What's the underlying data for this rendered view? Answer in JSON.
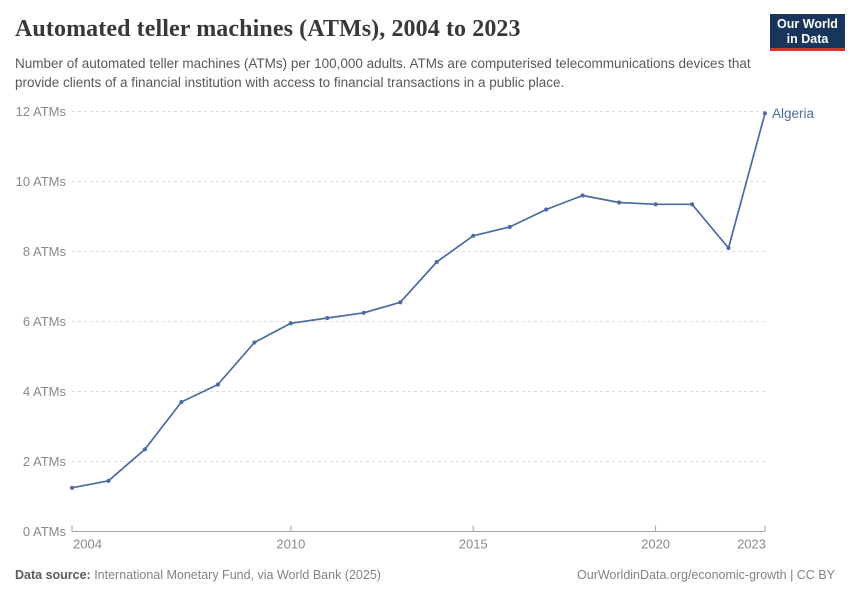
{
  "header": {
    "title": "Automated teller machines (ATMs), 2004 to 2023",
    "subtitle": "Number of automated teller machines (ATMs) per 100,000 adults. ATMs are computerised telecommunications devices that provide clients of a financial institution with access to financial transactions in a public place.",
    "logo_line1": "Our World",
    "logo_line2": "in Data"
  },
  "footer": {
    "source_label": "Data source:",
    "source_text": " International Monetary Fund, via World Bank (2025)",
    "link_text": "OurWorldinData.org/economic-growth | CC BY"
  },
  "chart_data": {
    "type": "line",
    "title": "Automated teller machines (ATMs), 2004 to 2023",
    "x": [
      2004,
      2005,
      2006,
      2007,
      2008,
      2009,
      2010,
      2011,
      2012,
      2013,
      2014,
      2015,
      2016,
      2017,
      2018,
      2019,
      2020,
      2021,
      2022,
      2023
    ],
    "series": [
      {
        "name": "Algeria",
        "values": [
          1.25,
          1.45,
          2.35,
          3.7,
          4.2,
          5.4,
          5.95,
          6.1,
          6.25,
          6.55,
          7.7,
          8.45,
          8.7,
          9.2,
          9.6,
          9.4,
          9.35,
          9.35,
          8.1,
          11.95
        ]
      }
    ],
    "xlim": [
      2004,
      2023
    ],
    "ylim": [
      0,
      12
    ],
    "x_ticks": [
      2004,
      2010,
      2015,
      2020,
      2023
    ],
    "y_ticks": [
      0,
      2,
      4,
      6,
      8,
      10,
      12
    ],
    "y_tick_suffix": " ATMs",
    "grid": "horizontal-dashed",
    "legend_position": "end-of-line-label",
    "colors": {
      "line": "#4c6ba0",
      "entity_label": "#4c6ba0",
      "gridline": "#dcdcdc",
      "axis": "#a3a3a3",
      "tick_label": "#8a8a8a"
    }
  }
}
